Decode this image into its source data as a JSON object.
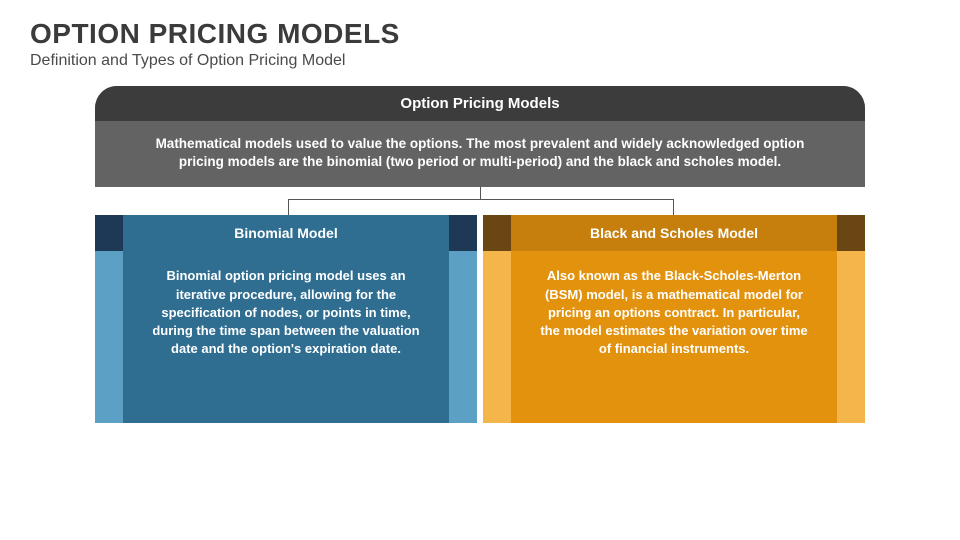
{
  "header": {
    "title": "OPTION PRICING MODELS",
    "subtitle": "Definition and Types of Option Pricing Model"
  },
  "top": {
    "title": "Option Pricing Models",
    "description": "Mathematical models used to value the options. The most prevalent and widely acknowledged option pricing models are the binomial (two period or multi-period) and the black and scholes model.",
    "title_bg": "#3c3c3c",
    "body_bg": "#636363",
    "text_color": "#ffffff"
  },
  "connectors": {
    "color": "#555555",
    "root_drop": 12,
    "branch_drop": 16,
    "left_pct": 25,
    "right_pct": 75
  },
  "columns": [
    {
      "title": "Binomial Model",
      "body_bold": "Binomial option",
      "body_rest": " pricing model uses an iterative procedure, allowing for the specification of nodes, or points in time, during the time span between the valuation date and the option's expiration date.",
      "title_bg": "#2f6e91",
      "body_bg": "#2f6e91",
      "accent_dark": "#1e3955",
      "accent_light": "#5da0c6"
    },
    {
      "title": "Black and Scholes Model",
      "body_prefix": "Also known as the ",
      "body_bold": "Black-Scholes-Merton (BSM) model",
      "body_rest": ", is a mathematical model for pricing an options contract. In particular, the model estimates the variation over time of financial instruments.",
      "title_bg": "#c67f0d",
      "body_bg": "#e3920e",
      "accent_dark": "#6a4613",
      "accent_light": "#f4b54a"
    }
  ]
}
